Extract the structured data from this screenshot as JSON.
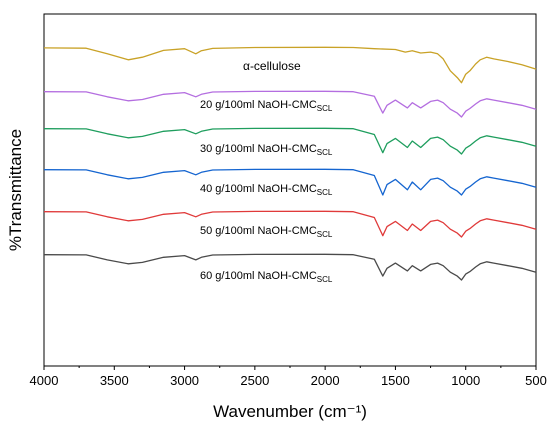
{
  "chart_data": {
    "type": "line",
    "title": "",
    "xlabel": "Wavenumber (cm⁻¹)",
    "ylabel": "%Transmittance",
    "xlim": [
      4000,
      500
    ],
    "x_reversed": true,
    "y_ticks_shown": false,
    "xticks": [
      "4000",
      "3500",
      "3000",
      "2500",
      "2000",
      "1500",
      "1000",
      "500"
    ],
    "grid": false,
    "legend": "none",
    "series": [
      {
        "name": "α-cellulose",
        "label_main": "α-cellulose",
        "label_sub": "",
        "color": "#c9a227",
        "points": [
          [
            4000,
            0.95
          ],
          [
            3700,
            0.93
          ],
          [
            3550,
            0.6
          ],
          [
            3400,
            0.25
          ],
          [
            3300,
            0.4
          ],
          [
            3150,
            0.8
          ],
          [
            3000,
            0.9
          ],
          [
            2920,
            0.6
          ],
          [
            2880,
            0.78
          ],
          [
            2800,
            0.92
          ],
          [
            2500,
            0.97
          ],
          [
            2000,
            0.98
          ],
          [
            1800,
            0.97
          ],
          [
            1650,
            0.9
          ],
          [
            1500,
            0.85
          ],
          [
            1430,
            0.7
          ],
          [
            1380,
            0.78
          ],
          [
            1320,
            0.65
          ],
          [
            1250,
            0.7
          ],
          [
            1200,
            0.6
          ],
          [
            1160,
            0.3
          ],
          [
            1110,
            -0.4
          ],
          [
            1060,
            -0.8
          ],
          [
            1030,
            -1.1
          ],
          [
            1000,
            -0.6
          ],
          [
            970,
            -0.4
          ],
          [
            930,
            0.0
          ],
          [
            897,
            0.25
          ],
          [
            850,
            0.4
          ],
          [
            800,
            0.3
          ],
          [
            700,
            0.15
          ],
          [
            600,
            -0.05
          ],
          [
            500,
            -0.3
          ]
        ]
      },
      {
        "name": "20 g/100ml NaOH-CMC",
        "label_main": "20 g/100ml NaOH-CMC",
        "label_sub": "SCL",
        "color": "#b46ee0",
        "points": [
          [
            4000,
            0.95
          ],
          [
            3700,
            0.93
          ],
          [
            3550,
            0.55
          ],
          [
            3400,
            0.25
          ],
          [
            3300,
            0.35
          ],
          [
            3150,
            0.75
          ],
          [
            3000,
            0.88
          ],
          [
            2920,
            0.55
          ],
          [
            2880,
            0.75
          ],
          [
            2800,
            0.92
          ],
          [
            2500,
            0.97
          ],
          [
            2000,
            0.98
          ],
          [
            1800,
            0.95
          ],
          [
            1650,
            0.6
          ],
          [
            1590,
            -0.7
          ],
          [
            1560,
            -0.1
          ],
          [
            1500,
            0.3
          ],
          [
            1415,
            -0.3
          ],
          [
            1380,
            0.1
          ],
          [
            1320,
            -0.3
          ],
          [
            1250,
            0.2
          ],
          [
            1200,
            0.3
          ],
          [
            1160,
            0.1
          ],
          [
            1110,
            -0.4
          ],
          [
            1060,
            -0.7
          ],
          [
            1030,
            -1.0
          ],
          [
            1000,
            -0.55
          ],
          [
            970,
            -0.35
          ],
          [
            930,
            0.0
          ],
          [
            897,
            0.25
          ],
          [
            850,
            0.4
          ],
          [
            800,
            0.3
          ],
          [
            700,
            0.1
          ],
          [
            600,
            -0.1
          ],
          [
            500,
            -0.4
          ]
        ]
      },
      {
        "name": "30 g/100ml NaOH-CMC",
        "label_main": "30 g/100ml NaOH-CMC",
        "label_sub": "SCL",
        "color": "#1f9e5e",
        "points": [
          [
            4000,
            0.95
          ],
          [
            3700,
            0.93
          ],
          [
            3550,
            0.55
          ],
          [
            3400,
            0.25
          ],
          [
            3300,
            0.35
          ],
          [
            3150,
            0.75
          ],
          [
            3000,
            0.88
          ],
          [
            2920,
            0.55
          ],
          [
            2880,
            0.75
          ],
          [
            2800,
            0.92
          ],
          [
            2500,
            0.97
          ],
          [
            2000,
            0.98
          ],
          [
            1800,
            0.95
          ],
          [
            1650,
            0.5
          ],
          [
            1590,
            -0.9
          ],
          [
            1560,
            -0.2
          ],
          [
            1500,
            0.2
          ],
          [
            1415,
            -0.5
          ],
          [
            1380,
            0.0
          ],
          [
            1320,
            -0.5
          ],
          [
            1250,
            0.2
          ],
          [
            1200,
            0.3
          ],
          [
            1160,
            0.1
          ],
          [
            1110,
            -0.4
          ],
          [
            1060,
            -0.7
          ],
          [
            1030,
            -1.0
          ],
          [
            1000,
            -0.55
          ],
          [
            970,
            -0.35
          ],
          [
            930,
            0.0
          ],
          [
            897,
            0.25
          ],
          [
            850,
            0.4
          ],
          [
            800,
            0.3
          ],
          [
            700,
            0.1
          ],
          [
            600,
            -0.1
          ],
          [
            500,
            -0.4
          ]
        ]
      },
      {
        "name": "40 g/100ml NaOH-CMC",
        "label_main": "40 g/100ml NaOH-CMC",
        "label_sub": "SCL",
        "color": "#1565d0",
        "points": [
          [
            4000,
            0.95
          ],
          [
            3700,
            0.93
          ],
          [
            3550,
            0.55
          ],
          [
            3400,
            0.25
          ],
          [
            3300,
            0.35
          ],
          [
            3150,
            0.75
          ],
          [
            3000,
            0.88
          ],
          [
            2920,
            0.55
          ],
          [
            2880,
            0.75
          ],
          [
            2800,
            0.92
          ],
          [
            2500,
            0.97
          ],
          [
            2000,
            0.98
          ],
          [
            1800,
            0.95
          ],
          [
            1650,
            0.5
          ],
          [
            1590,
            -1.0
          ],
          [
            1560,
            -0.2
          ],
          [
            1500,
            0.2
          ],
          [
            1415,
            -0.6
          ],
          [
            1380,
            0.0
          ],
          [
            1320,
            -0.6
          ],
          [
            1250,
            0.2
          ],
          [
            1200,
            0.3
          ],
          [
            1160,
            0.1
          ],
          [
            1110,
            -0.4
          ],
          [
            1060,
            -0.7
          ],
          [
            1030,
            -1.0
          ],
          [
            1000,
            -0.55
          ],
          [
            970,
            -0.35
          ],
          [
            930,
            0.0
          ],
          [
            897,
            0.25
          ],
          [
            850,
            0.4
          ],
          [
            800,
            0.3
          ],
          [
            700,
            0.1
          ],
          [
            600,
            -0.1
          ],
          [
            500,
            -0.4
          ]
        ]
      },
      {
        "name": "50 g/100ml NaOH-CMC",
        "label_main": "50 g/100ml NaOH-CMC",
        "label_sub": "SCL",
        "color": "#e03a3a",
        "points": [
          [
            4000,
            0.95
          ],
          [
            3700,
            0.93
          ],
          [
            3550,
            0.55
          ],
          [
            3400,
            0.25
          ],
          [
            3300,
            0.35
          ],
          [
            3150,
            0.75
          ],
          [
            3000,
            0.88
          ],
          [
            2920,
            0.55
          ],
          [
            2880,
            0.75
          ],
          [
            2800,
            0.92
          ],
          [
            2500,
            0.97
          ],
          [
            2000,
            0.98
          ],
          [
            1800,
            0.95
          ],
          [
            1650,
            0.5
          ],
          [
            1590,
            -0.9
          ],
          [
            1560,
            -0.2
          ],
          [
            1500,
            0.2
          ],
          [
            1415,
            -0.5
          ],
          [
            1380,
            0.0
          ],
          [
            1320,
            -0.5
          ],
          [
            1250,
            0.2
          ],
          [
            1200,
            0.3
          ],
          [
            1160,
            0.1
          ],
          [
            1110,
            -0.4
          ],
          [
            1060,
            -0.7
          ],
          [
            1030,
            -1.0
          ],
          [
            1000,
            -0.55
          ],
          [
            970,
            -0.35
          ],
          [
            930,
            0.0
          ],
          [
            897,
            0.25
          ],
          [
            850,
            0.4
          ],
          [
            800,
            0.3
          ],
          [
            700,
            0.1
          ],
          [
            600,
            -0.1
          ],
          [
            500,
            -0.4
          ]
        ]
      },
      {
        "name": "60 g/100ml NaOH-CMC",
        "label_main": "60 g/100ml NaOH-CMC",
        "label_sub": "SCL",
        "color": "#4a4a4a",
        "points": [
          [
            4000,
            0.95
          ],
          [
            3700,
            0.93
          ],
          [
            3550,
            0.55
          ],
          [
            3400,
            0.25
          ],
          [
            3300,
            0.35
          ],
          [
            3150,
            0.75
          ],
          [
            3000,
            0.88
          ],
          [
            2920,
            0.55
          ],
          [
            2880,
            0.75
          ],
          [
            2800,
            0.92
          ],
          [
            2500,
            0.97
          ],
          [
            2000,
            0.98
          ],
          [
            1800,
            0.95
          ],
          [
            1650,
            0.6
          ],
          [
            1590,
            -0.7
          ],
          [
            1560,
            -0.1
          ],
          [
            1500,
            0.3
          ],
          [
            1415,
            -0.3
          ],
          [
            1380,
            0.1
          ],
          [
            1320,
            -0.3
          ],
          [
            1250,
            0.2
          ],
          [
            1200,
            0.3
          ],
          [
            1160,
            0.1
          ],
          [
            1110,
            -0.4
          ],
          [
            1060,
            -0.7
          ],
          [
            1030,
            -1.0
          ],
          [
            1000,
            -0.55
          ],
          [
            970,
            -0.35
          ],
          [
            930,
            0.0
          ],
          [
            897,
            0.25
          ],
          [
            850,
            0.4
          ],
          [
            800,
            0.3
          ],
          [
            700,
            0.1
          ],
          [
            600,
            -0.1
          ],
          [
            500,
            -0.4
          ]
        ]
      }
    ]
  }
}
